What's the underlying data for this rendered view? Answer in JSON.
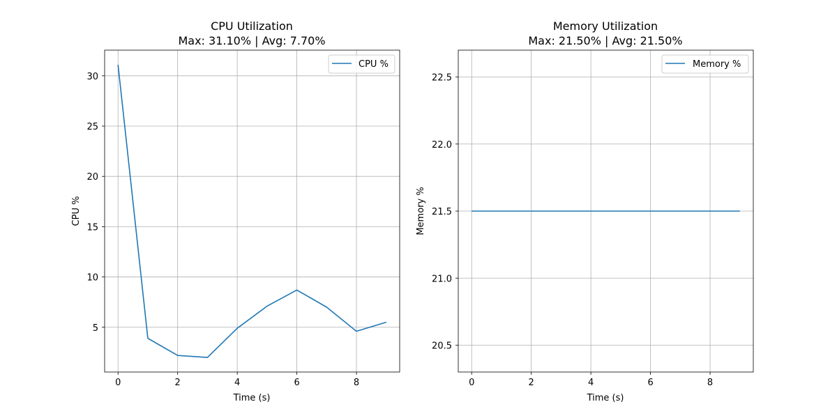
{
  "chart_data": [
    {
      "type": "line",
      "title": "CPU Utilization",
      "subtitle": "Max: 31.10% | Avg: 7.70%",
      "xlabel": "Time (s)",
      "ylabel": "CPU %",
      "xlim": [
        -0.45,
        9.45
      ],
      "ylim": [
        0.55,
        32.55
      ],
      "xticks": [
        0,
        2,
        4,
        6,
        8
      ],
      "yticks": [
        5,
        10,
        15,
        20,
        25,
        30
      ],
      "grid": true,
      "legend_position": "top-right",
      "series": [
        {
          "name": "CPU %",
          "color": "#1f77b4",
          "x": [
            0,
            1,
            2,
            3,
            4,
            5,
            6,
            7,
            8,
            9
          ],
          "y": [
            31.1,
            3.9,
            2.2,
            2.0,
            4.9,
            7.1,
            8.7,
            7.0,
            4.6,
            5.5
          ]
        }
      ]
    },
    {
      "type": "line",
      "title": "Memory Utilization",
      "subtitle": "Max: 21.50% | Avg: 21.50%",
      "xlabel": "Time (s)",
      "ylabel": "Memory %",
      "xlim": [
        -0.45,
        9.45
      ],
      "ylim": [
        20.3,
        22.7
      ],
      "xticks": [
        0,
        2,
        4,
        6,
        8
      ],
      "yticks": [
        20.5,
        21.0,
        21.5,
        22.0,
        22.5
      ],
      "ytick_labels": [
        "20.5",
        "21.0",
        "21.5",
        "22.0",
        "22.5"
      ],
      "grid": true,
      "legend_position": "top-right",
      "series": [
        {
          "name": "Memory %",
          "color": "#1f77b4",
          "x": [
            0,
            1,
            2,
            3,
            4,
            5,
            6,
            7,
            8,
            9
          ],
          "y": [
            21.5,
            21.5,
            21.5,
            21.5,
            21.5,
            21.5,
            21.5,
            21.5,
            21.5,
            21.5
          ]
        }
      ]
    }
  ]
}
